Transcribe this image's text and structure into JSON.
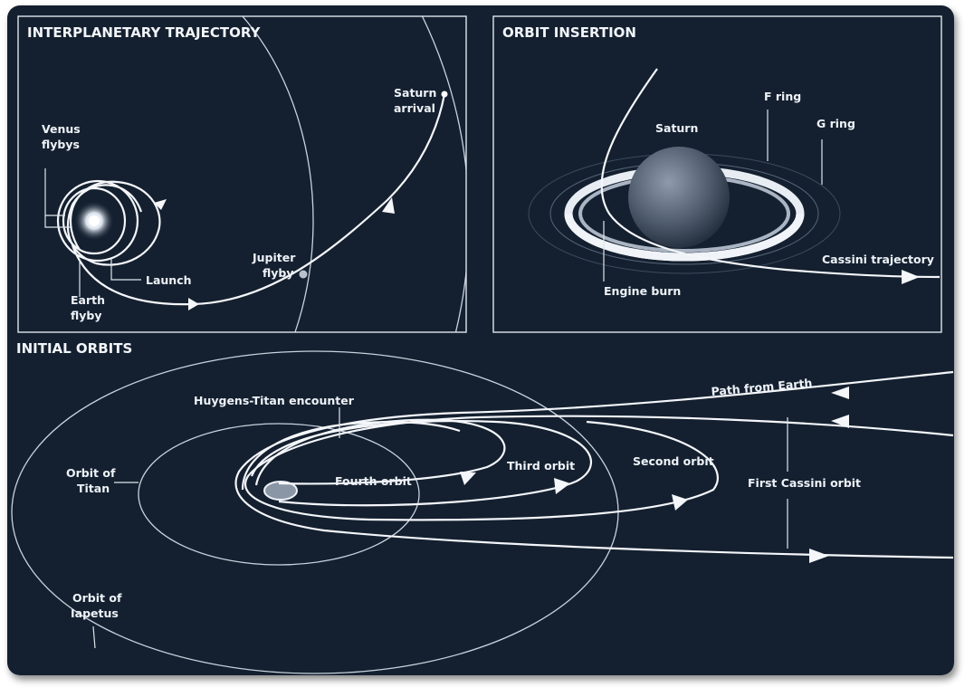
{
  "panels": {
    "interplanetary": {
      "title": "INTERPLANETARY TRAJECTORY",
      "labels": {
        "venus_1": "Venus",
        "venus_2": "flybys",
        "saturn_1": "Saturn",
        "saturn_2": "arrival",
        "jupiter_1": "Jupiter",
        "jupiter_2": "flyby",
        "launch": "Launch",
        "earth_1": "Earth",
        "earth_2": "flyby"
      }
    },
    "insertion": {
      "title": "ORBIT INSERTION",
      "labels": {
        "saturn": "Saturn",
        "f_ring": "F ring",
        "g_ring": "G ring",
        "cassini_trajectory": "Cassini trajectory",
        "engine_burn": "Engine burn"
      }
    },
    "initial": {
      "title": "INITIAL ORBITS",
      "labels": {
        "huygens": "Huygens-Titan encounter",
        "path_from_earth": "Path from Earth",
        "titan_1": "Orbit of",
        "titan_2": "Titan",
        "fourth": "Fourth orbit",
        "third": "Third orbit",
        "second": "Second orbit",
        "first": "First Cassini orbit",
        "iapetus_1": "Orbit of",
        "iapetus_2": "Iapetus"
      }
    }
  },
  "colors": {
    "background": "#14202f",
    "line": "#f4f6fa",
    "frame": "#dfe5ee"
  }
}
